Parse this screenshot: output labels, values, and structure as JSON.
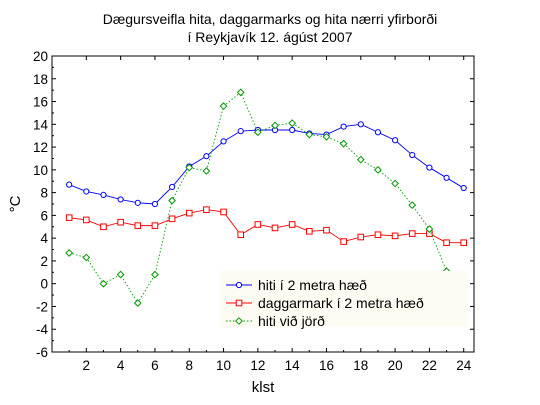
{
  "chart_data": {
    "type": "line",
    "title": [
      "Dægursveifla hita, daggarmarks og hita nærri yfirborði",
      "í Reykjavík 12. ágúst 2007"
    ],
    "xlabel": "klst",
    "ylabel": "°C",
    "xlim": [
      0,
      24.6
    ],
    "ylim": [
      -6,
      20
    ],
    "xticks": [
      2,
      4,
      6,
      8,
      10,
      12,
      14,
      16,
      18,
      20,
      22,
      24
    ],
    "yticks": [
      -6,
      -4,
      -2,
      0,
      2,
      4,
      6,
      8,
      10,
      12,
      14,
      16,
      18,
      20
    ],
    "grid": false,
    "legend_position": "bottom-right",
    "x": [
      1,
      2,
      3,
      4,
      5,
      6,
      7,
      8,
      9,
      10,
      11,
      12,
      13,
      14,
      15,
      16,
      17,
      18,
      19,
      20,
      21,
      22,
      23,
      24
    ],
    "series": [
      {
        "name": "hiti í 2 metra hæð",
        "color": "#0000ff",
        "marker": "circle",
        "line": "solid",
        "values": [
          8.7,
          8.1,
          7.8,
          7.4,
          7.1,
          7.0,
          8.5,
          10.3,
          11.2,
          12.5,
          13.4,
          13.5,
          13.5,
          13.5,
          13.2,
          13.1,
          13.8,
          14.0,
          13.3,
          12.6,
          11.3,
          10.2,
          9.3,
          8.4
        ]
      },
      {
        "name": "daggarmark í 2 metra hæð",
        "color": "#ff0000",
        "marker": "square",
        "line": "solid",
        "values": [
          5.8,
          5.6,
          5.0,
          5.4,
          5.1,
          5.1,
          5.7,
          6.2,
          6.5,
          6.3,
          4.3,
          5.2,
          4.9,
          5.2,
          4.6,
          4.7,
          3.7,
          4.1,
          4.3,
          4.2,
          4.4,
          4.4,
          3.6,
          3.6
        ]
      },
      {
        "name": "hiti við jörð",
        "color": "#009900",
        "marker": "diamond",
        "line": "dotted",
        "values": [
          2.7,
          2.3,
          0.0,
          0.8,
          -1.7,
          0.8,
          7.3,
          10.2,
          9.9,
          15.6,
          16.8,
          13.3,
          13.9,
          14.1,
          13.1,
          12.9,
          12.3,
          10.9,
          10.0,
          8.8,
          6.9,
          4.8,
          1.1,
          -0.2
        ]
      }
    ]
  }
}
